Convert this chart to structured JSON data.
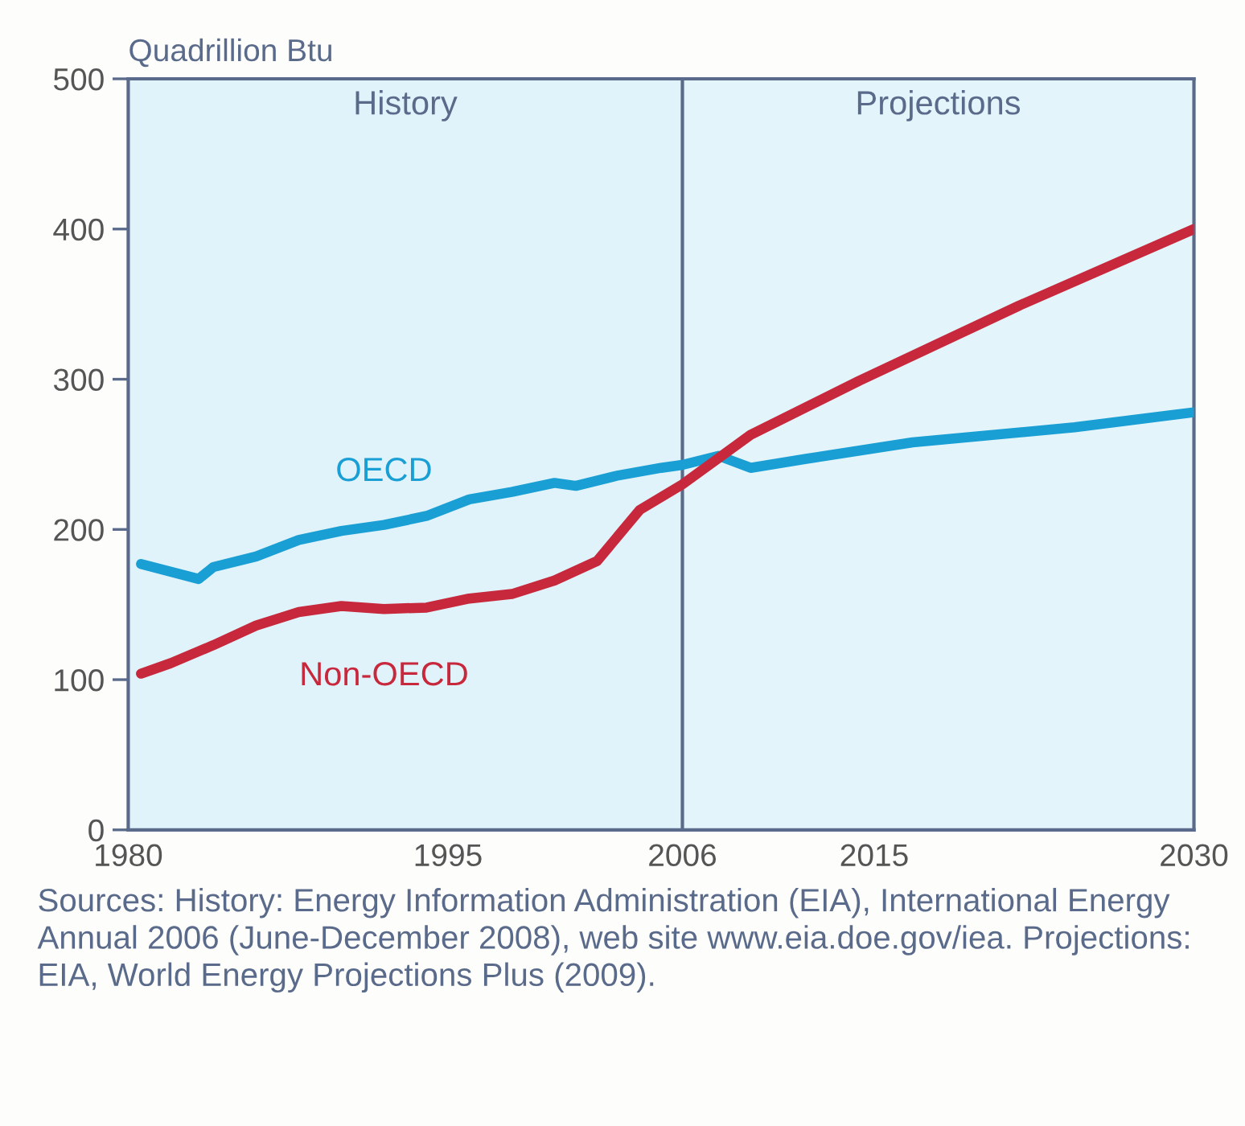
{
  "chart_data": {
    "type": "line",
    "ylabel": "Quadrillion Btu",
    "xlim": [
      1980,
      2030
    ],
    "xticks": [
      1980,
      1995,
      2006,
      2015,
      2030
    ],
    "ylim": [
      0,
      500
    ],
    "yticks": [
      0,
      100,
      200,
      300,
      400,
      500
    ],
    "grid": false,
    "legend": false,
    "marker": "none",
    "line_style": "solid",
    "series": [
      {
        "name": "OECD",
        "color": "#1a9fd4",
        "x": [
          1980.6,
          1983.3,
          1984,
          1986,
          1988,
          1990,
          1992,
          1994,
          1996,
          1998,
          2000,
          2001,
          2003,
          2005,
          2006,
          2007.7,
          2009.2,
          2011.8,
          2016.8,
          2024.4,
          2030
        ],
        "values": [
          177,
          167,
          175,
          182,
          193,
          199,
          203,
          209,
          220,
          225,
          231,
          229,
          236,
          241,
          243,
          249,
          241,
          247,
          258,
          268,
          278
        ]
      },
      {
        "name": "Non-OECD",
        "color": "#c8283c",
        "x": [
          1980.6,
          1982,
          1984,
          1986,
          1988,
          1990,
          1992,
          1994,
          1996,
          1998,
          2000,
          2002,
          2004,
          2006,
          2009.2,
          2014.3,
          2021.8,
          2030
        ],
        "values": [
          104,
          111,
          123,
          136,
          145,
          149,
          147,
          148,
          154,
          157,
          166,
          179,
          213,
          230,
          263,
          299,
          349,
          400
        ]
      }
    ],
    "ref_lines": [
      {
        "axis": "x",
        "value": 2006,
        "color": "#5a6a8a"
      }
    ],
    "bands": [
      {
        "axis": "x",
        "from": 1980,
        "to": 2006,
        "label": "History",
        "color": "#e0f3fb"
      },
      {
        "axis": "x",
        "from": 2006,
        "to": 2030,
        "label": "Projections",
        "color": "#e4f4fb"
      }
    ],
    "annotations": [
      "Sources: History: Energy Information Administration (EIA), International Energy Annual 2006 (June-December 2008), web site www.eia.doe.gov/iea. Projections: EIA, World Energy Projections Plus (2009)."
    ]
  }
}
